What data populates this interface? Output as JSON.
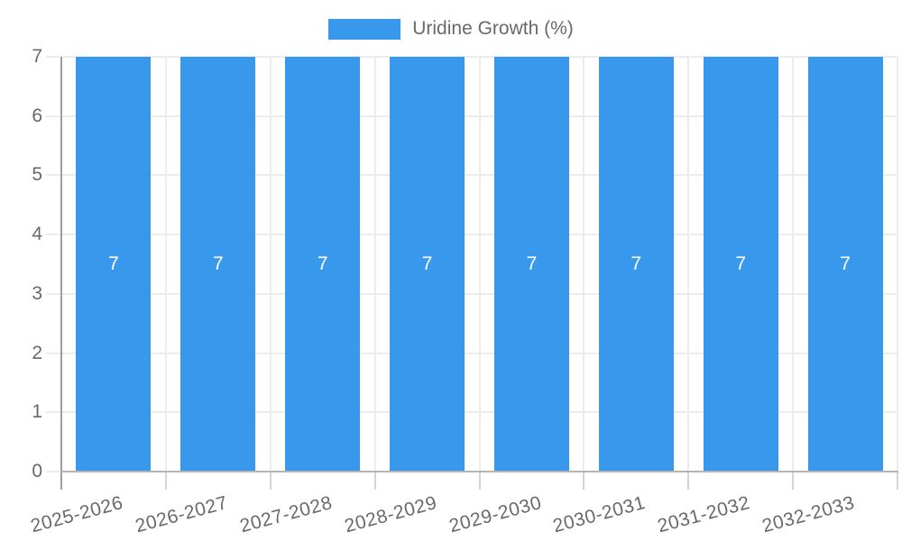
{
  "legend": {
    "label": "Uridine Growth (%)"
  },
  "chart_data": {
    "type": "bar",
    "title": "",
    "xlabel": "",
    "ylabel": "",
    "categories": [
      "2025-2026",
      "2026-2027",
      "2027-2028",
      "2028-2029",
      "2029-2030",
      "2030-2031",
      "2031-2032",
      "2032-2033"
    ],
    "series": [
      {
        "name": "Uridine Growth (%)",
        "values": [
          7,
          7,
          7,
          7,
          7,
          7,
          7,
          7
        ]
      }
    ],
    "bar_value_labels": [
      "7",
      "7",
      "7",
      "7",
      "7",
      "7",
      "7",
      "7"
    ],
    "ylim": [
      0,
      7
    ],
    "yticks": [
      0,
      1,
      2,
      3,
      4,
      5,
      6,
      7
    ],
    "grid": true,
    "legend_position": "top",
    "colors": {
      "bar": "#3899EC",
      "data_label": "#FFFFFF",
      "axis_text": "#696969",
      "grid": "#ECECEC",
      "tick_below": "#D4D4D4",
      "axis_line": "#9E9E9E",
      "baseline": "#B5B5B5",
      "background": "#FFFFFF"
    }
  }
}
